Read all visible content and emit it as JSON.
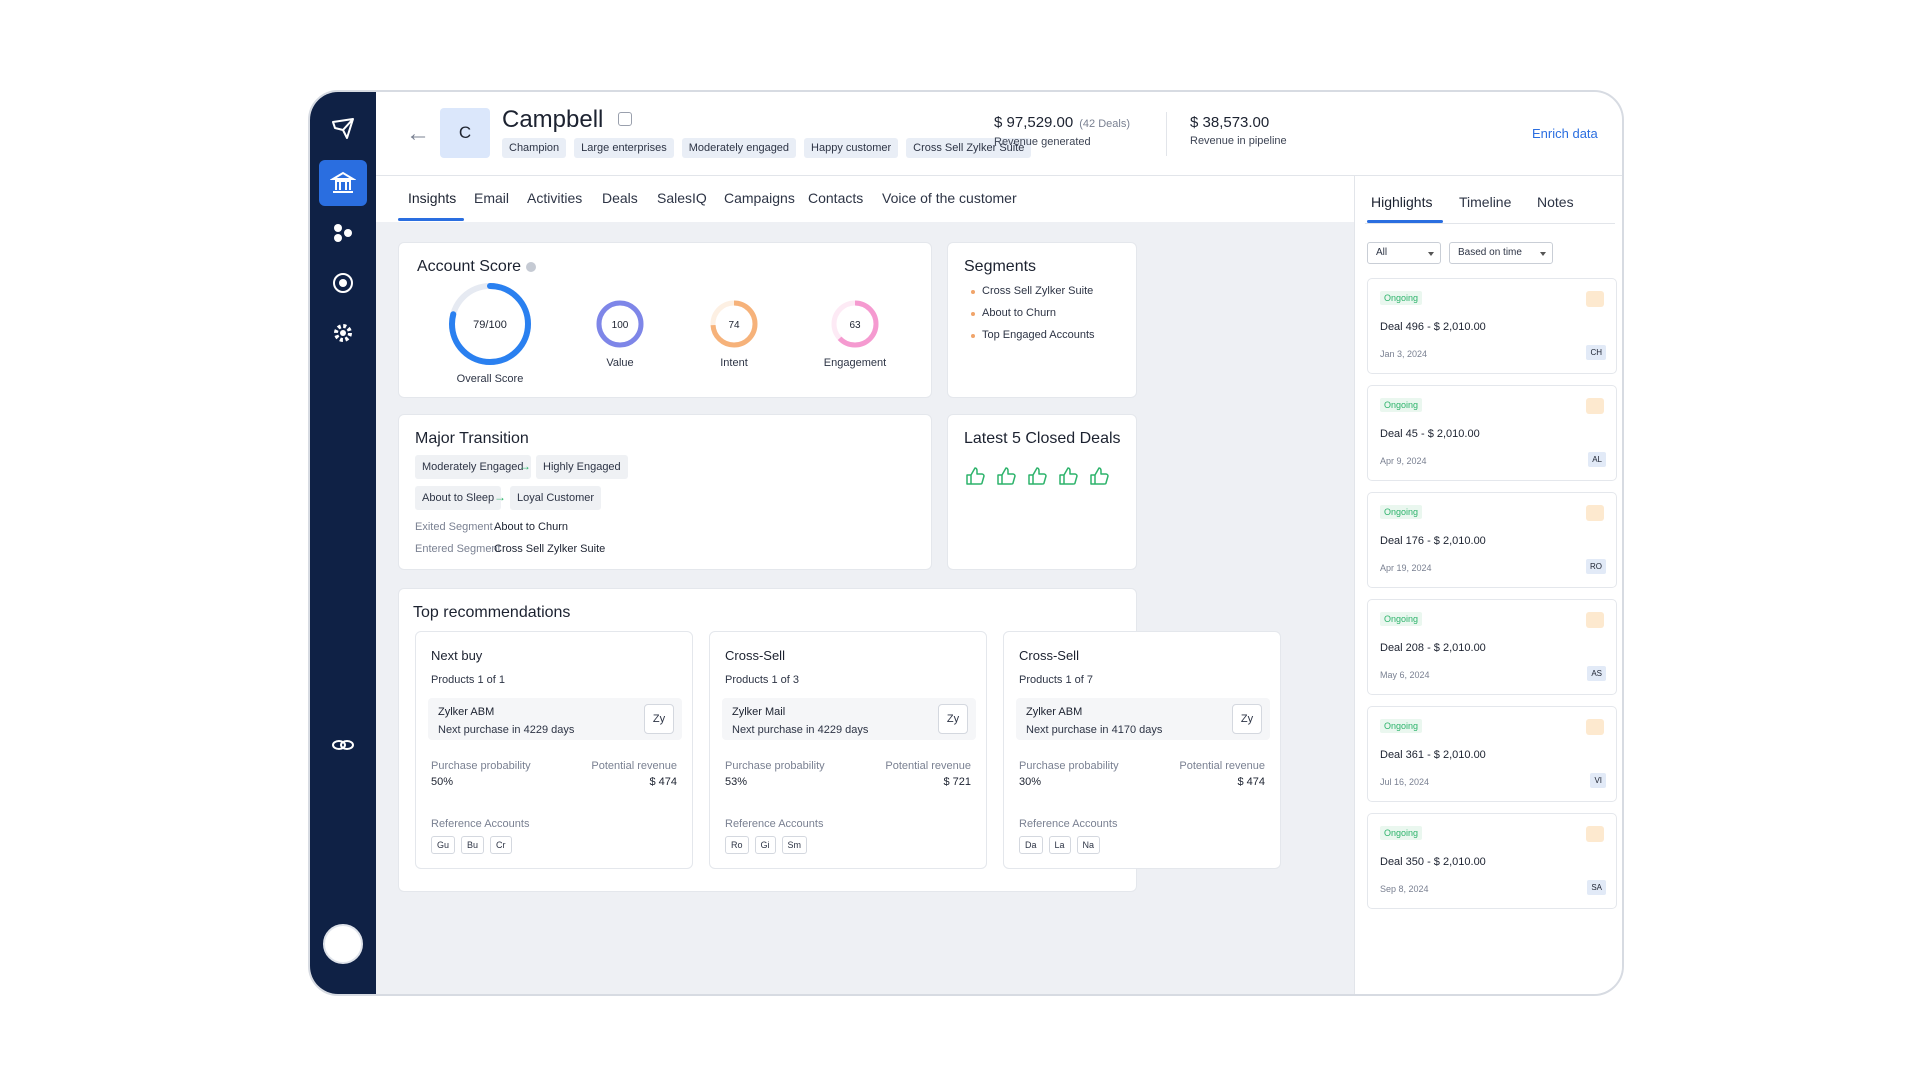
{
  "account": {
    "logo_letter": "C",
    "name": "Campbell",
    "tags": [
      "Champion",
      "Large enterprises",
      "Moderately engaged",
      "Happy customer",
      "Cross Sell Zylker Suite"
    ]
  },
  "metrics": {
    "revenue_amount": "$ 97,529.00",
    "revenue_deals": "(42 Deals)",
    "revenue_label": "Revenue generated",
    "pipeline_amount": "$ 38,573.00",
    "pipeline_label": "Revenue in pipeline"
  },
  "enrich_label": "Enrich data",
  "tabs": [
    "Insights",
    "Email",
    "Activities",
    "Deals",
    "SalesIQ",
    "Campaigns",
    "Contacts",
    "Voice of the customer"
  ],
  "account_score": {
    "title": "Account Score",
    "overall": {
      "value": "79/100",
      "label": "Overall Score",
      "fraction": 0.79
    },
    "gauges": [
      {
        "value": "100",
        "label": "Value",
        "fraction": 1.0
      },
      {
        "value": "74",
        "label": "Intent",
        "fraction": 0.74
      },
      {
        "value": "63",
        "label": "Engagement",
        "fraction": 0.63
      }
    ]
  },
  "segments": {
    "title": "Segments",
    "items": [
      "Cross Sell Zylker Suite",
      "About to Churn",
      "Top Engaged Accounts"
    ]
  },
  "major_transition": {
    "title": "Major Transition",
    "row1": [
      "Moderately Engaged",
      "Highly Engaged"
    ],
    "row2": [
      "About to Sleep",
      "Loyal Customer"
    ],
    "exited_label": "Exited Segment",
    "exited_value": "About to Churn",
    "entered_label": "Entered Segment",
    "entered_value": "Cross Sell Zylker Suite"
  },
  "closed_deals": {
    "title": "Latest 5 Closed Deals"
  },
  "recommendations": {
    "title": "Top recommendations",
    "cards": [
      {
        "type": "Next buy",
        "products": "Products 1 of 1",
        "product_name": "Zylker ABM",
        "next_purchase": "Next purchase in 4229 days",
        "logo": "Zy",
        "prob_label": "Purchase probability",
        "prob": "50%",
        "rev_label": "Potential revenue",
        "rev": "$ 474",
        "ref_label": "Reference Accounts",
        "refs": [
          "Gu",
          "Bu",
          "Cr"
        ]
      },
      {
        "type": "Cross-Sell",
        "products": "Products 1 of 3",
        "product_name": "Zylker Mail",
        "next_purchase": "Next purchase in 4229 days",
        "logo": "Zy",
        "prob_label": "Purchase probability",
        "prob": "53%",
        "rev_label": "Potential revenue",
        "rev": "$ 721",
        "ref_label": "Reference Accounts",
        "refs": [
          "Ro",
          "Gi",
          "Sm"
        ]
      },
      {
        "type": "Cross-Sell",
        "products": "Products 1 of 7",
        "product_name": "Zylker ABM",
        "next_purchase": "Next purchase in 4170 days",
        "logo": "Zy",
        "prob_label": "Purchase probability",
        "prob": "30%",
        "rev_label": "Potential revenue",
        "rev": "$ 474",
        "ref_label": "Reference Accounts",
        "refs": [
          "Da",
          "La",
          "Na"
        ]
      }
    ]
  },
  "right_panel": {
    "tabs": [
      "Highlights",
      "Timeline",
      "Notes"
    ],
    "filter_all": "All",
    "filter_sort": "Based on time",
    "deals": [
      {
        "status": "Ongoing",
        "name": "Deal 496 - $ 2,010.00",
        "date": "Jan 3, 2024",
        "initials": "CH"
      },
      {
        "status": "Ongoing",
        "name": "Deal 45 - $ 2,010.00",
        "date": "Apr 9, 2024",
        "initials": "AL"
      },
      {
        "status": "Ongoing",
        "name": "Deal 176 - $ 2,010.00",
        "date": "Apr 19, 2024",
        "initials": "RO"
      },
      {
        "status": "Ongoing",
        "name": "Deal 208 - $ 2,010.00",
        "date": "May 6, 2024",
        "initials": "AS"
      },
      {
        "status": "Ongoing",
        "name": "Deal 361 - $ 2,010.00",
        "date": "Jul 16, 2024",
        "initials": "VI"
      },
      {
        "status": "Ongoing",
        "name": "Deal 350 - $ 2,010.00",
        "date": "Sep 8, 2024",
        "initials": "SA"
      }
    ]
  },
  "colors": {
    "accent": "#2a6ee0",
    "sidebar": "#0f2145",
    "value": "#7e86e8",
    "intent": "#f6b27a",
    "engagement": "#f59ad0",
    "overall": "#2a80f0",
    "positive": "#2db36b"
  }
}
